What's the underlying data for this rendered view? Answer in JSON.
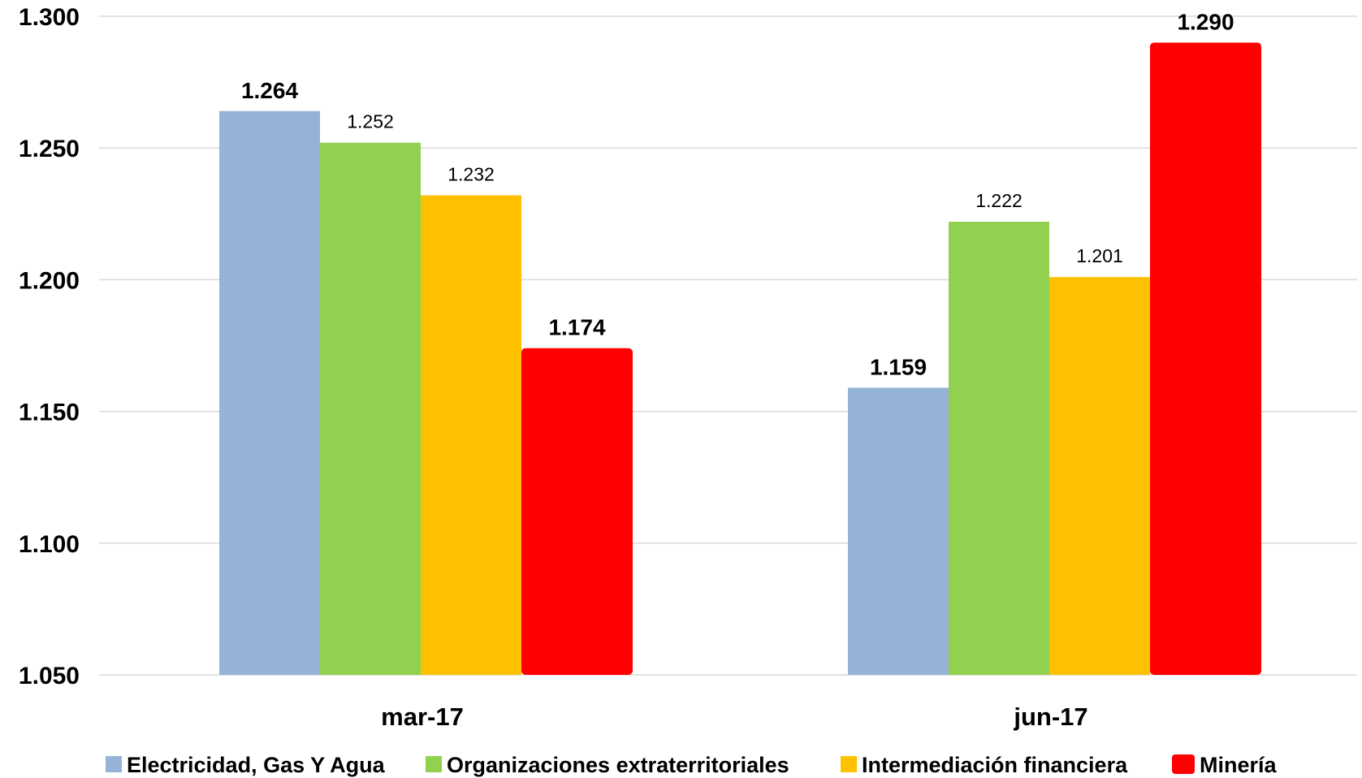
{
  "chart_data": {
    "type": "bar",
    "title": "",
    "xlabel": "",
    "ylabel": "",
    "categories": [
      "mar-17",
      "jun-17"
    ],
    "ylim": [
      1.05,
      1.3
    ],
    "yticks": [
      1.05,
      1.1,
      1.15,
      1.2,
      1.25,
      1.3
    ],
    "ytick_labels": [
      "1.050",
      "1.100",
      "1.150",
      "1.200",
      "1.250",
      "1.300"
    ],
    "grid": true,
    "legend_position": "bottom",
    "series": [
      {
        "name": "Electricidad, Gas Y Agua",
        "color": "#95b3d7",
        "values": [
          1.264,
          1.159
        ],
        "labels": [
          "1.264",
          "1.159"
        ],
        "label_bold": true
      },
      {
        "name": "Organizaciones extraterritoriales",
        "color": "#92d050",
        "values": [
          1.252,
          1.222
        ],
        "labels": [
          "1.252",
          "1.222"
        ],
        "label_bold": false
      },
      {
        "name": "Intermediación financiera",
        "color": "#ffc000",
        "values": [
          1.232,
          1.201
        ],
        "labels": [
          "1.232",
          "1.201"
        ],
        "label_bold": false
      },
      {
        "name": "Minería",
        "color": "#ff0000",
        "values": [
          1.174,
          1.29
        ],
        "labels": [
          "1.174",
          "1.290"
        ],
        "label_bold": true,
        "rounded": true
      }
    ]
  }
}
